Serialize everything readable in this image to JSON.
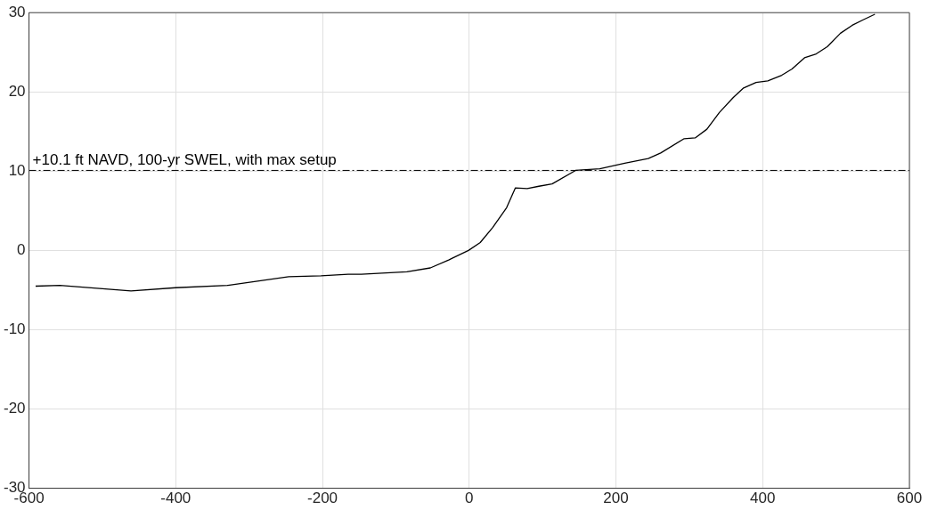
{
  "chart_data": {
    "type": "line",
    "xlim": [
      -600,
      600
    ],
    "xticks": [
      -600,
      -400,
      -200,
      0,
      200,
      400,
      600
    ],
    "ylim": [
      -30,
      30
    ],
    "yticks": [
      -30,
      -20,
      -10,
      0,
      10,
      20,
      30
    ],
    "grid": true,
    "marker": "none",
    "line_style": "solid",
    "x": [
      -591,
      -558,
      -461,
      -400,
      -329,
      -246,
      -202,
      -165,
      -147,
      -85,
      -53,
      -28,
      -1,
      15,
      32,
      51,
      63,
      79,
      95,
      113,
      145,
      178,
      212,
      244,
      261,
      293,
      308,
      324,
      341,
      360,
      374,
      391,
      407,
      426,
      440,
      457,
      473,
      488,
      506,
      522,
      537,
      553
    ],
    "series": [
      {
        "color": "#000000",
        "values": [
          -4.5,
          -4.4,
          -5.1,
          -4.7,
          -4.4,
          -3.3,
          -3.2,
          -3.0,
          -3.0,
          -2.7,
          -2.2,
          -1.2,
          0,
          1.0,
          2.9,
          5.4,
          7.9,
          7.8,
          8.1,
          8.4,
          10.1,
          10.3,
          11.0,
          11.6,
          12.3,
          14.1,
          14.2,
          15.3,
          17.4,
          19.3,
          20.5,
          21.2,
          21.4,
          22.1,
          22.9,
          24.3,
          24.8,
          25.7,
          27.4,
          28.4,
          29.1,
          29.8
        ]
      }
    ],
    "ref_lines": [
      {
        "axis": "y",
        "value": 10.1,
        "label": "+10.1 ft NAVD, 100-yr SWEL, with max setup",
        "color": "#000000",
        "line_style": "dashdot"
      }
    ]
  }
}
